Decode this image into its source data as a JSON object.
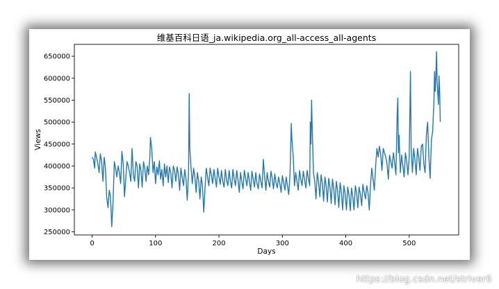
{
  "chart_data": {
    "type": "line",
    "title": "维基百科日语_ja.wikipedia.org_all-access_all-agents",
    "xlabel": "Days",
    "ylabel": "Views",
    "xlim": [
      -28,
      578
    ],
    "ylim": [
      243000,
      677000
    ],
    "xticks": [
      0,
      100,
      200,
      300,
      400,
      500
    ],
    "yticks": [
      250000,
      300000,
      350000,
      400000,
      450000,
      500000,
      550000,
      600000,
      650000
    ],
    "ytick_labels": [
      "250000",
      "300000",
      "350000",
      "400000",
      "450000",
      "500000",
      "550000",
      "600000",
      "650000"
    ],
    "grid": false,
    "color": "#1f77b4",
    "x": [
      0,
      10,
      30,
      50,
      100,
      150,
      200,
      250,
      300,
      350,
      400,
      450,
      500,
      550
    ],
    "series": [
      {
        "keypoints": [
          [
            0,
            420000
          ],
          [
            2,
            415000
          ],
          [
            4,
            395000
          ],
          [
            5,
            432000
          ],
          [
            7,
            420000
          ],
          [
            9,
            405000
          ],
          [
            11,
            385000
          ],
          [
            13,
            428000
          ],
          [
            15,
            410000
          ],
          [
            17,
            365000
          ],
          [
            19,
            420000
          ],
          [
            21,
            395000
          ],
          [
            23,
            330000
          ],
          [
            25,
            305000
          ],
          [
            27,
            345000
          ],
          [
            29,
            330000
          ],
          [
            31,
            262000
          ],
          [
            33,
            320000
          ],
          [
            35,
            410000
          ],
          [
            37,
            395000
          ],
          [
            39,
            375000
          ],
          [
            41,
            400000
          ],
          [
            43,
            385000
          ],
          [
            45,
            360000
          ],
          [
            47,
            433000
          ],
          [
            49,
            405000
          ],
          [
            51,
            330000
          ],
          [
            53,
            370000
          ],
          [
            55,
            410000
          ],
          [
            57,
            400000
          ],
          [
            59,
            385000
          ],
          [
            61,
            365000
          ],
          [
            63,
            440000
          ],
          [
            65,
            380000
          ],
          [
            67,
            365000
          ],
          [
            69,
            410000
          ],
          [
            71,
            400000
          ],
          [
            73,
            350000
          ],
          [
            75,
            405000
          ],
          [
            77,
            390000
          ],
          [
            79,
            352000
          ],
          [
            81,
            410000
          ],
          [
            83,
            395000
          ],
          [
            85,
            365000
          ],
          [
            87,
            400000
          ],
          [
            89,
            380000
          ],
          [
            91,
            420000
          ],
          [
            92,
            465000
          ],
          [
            94,
            440000
          ],
          [
            96,
            385000
          ],
          [
            98,
            410000
          ],
          [
            100,
            360000
          ],
          [
            102,
            398000
          ],
          [
            104,
            380000
          ],
          [
            106,
            412000
          ],
          [
            108,
            370000
          ],
          [
            110,
            392000
          ],
          [
            112,
            355000
          ],
          [
            114,
            405000
          ],
          [
            116,
            375000
          ],
          [
            118,
            400000
          ],
          [
            120,
            362000
          ],
          [
            122,
            398000
          ],
          [
            124,
            385000
          ],
          [
            126,
            350000
          ],
          [
            128,
            400000
          ],
          [
            130,
            390000
          ],
          [
            132,
            365000
          ],
          [
            134,
            398000
          ],
          [
            136,
            380000
          ],
          [
            138,
            345000
          ],
          [
            140,
            395000
          ],
          [
            142,
            375000
          ],
          [
            144,
            355000
          ],
          [
            146,
            392000
          ],
          [
            148,
            372000
          ],
          [
            150,
            322000
          ],
          [
            152,
            385000
          ],
          [
            153,
            565000
          ],
          [
            154,
            440000
          ],
          [
            156,
            395000
          ],
          [
            158,
            360000
          ],
          [
            160,
            395000
          ],
          [
            162,
            375000
          ],
          [
            164,
            340000
          ],
          [
            166,
            385000
          ],
          [
            168,
            365000
          ],
          [
            170,
            325000
          ],
          [
            172,
            375000
          ],
          [
            174,
            355000
          ],
          [
            176,
            295000
          ],
          [
            178,
            350000
          ],
          [
            180,
            395000
          ],
          [
            182,
            375000
          ],
          [
            184,
            355000
          ],
          [
            186,
            395000
          ],
          [
            188,
            380000
          ],
          [
            190,
            360000
          ],
          [
            192,
            392000
          ],
          [
            194,
            372000
          ],
          [
            196,
            352000
          ],
          [
            198,
            395000
          ],
          [
            200,
            375000
          ],
          [
            202,
            358000
          ],
          [
            204,
            390000
          ],
          [
            206,
            365000
          ],
          [
            208,
            352000
          ],
          [
            210,
            392000
          ],
          [
            212,
            368000
          ],
          [
            214,
            355000
          ],
          [
            216,
            390000
          ],
          [
            218,
            365000
          ],
          [
            220,
            350000
          ],
          [
            222,
            392000
          ],
          [
            224,
            370000
          ],
          [
            226,
            355000
          ],
          [
            228,
            390000
          ],
          [
            230,
            368000
          ],
          [
            232,
            340000
          ],
          [
            234,
            385000
          ],
          [
            236,
            365000
          ],
          [
            238,
            348000
          ],
          [
            240,
            390000
          ],
          [
            242,
            372000
          ],
          [
            244,
            355000
          ],
          [
            246,
            385000
          ],
          [
            248,
            365000
          ],
          [
            250,
            345000
          ],
          [
            252,
            388000
          ],
          [
            254,
            370000
          ],
          [
            256,
            352000
          ],
          [
            258,
            385000
          ],
          [
            260,
            360000
          ],
          [
            262,
            348000
          ],
          [
            264,
            382000
          ],
          [
            266,
            365000
          ],
          [
            268,
            350000
          ],
          [
            270,
            415000
          ],
          [
            272,
            375000
          ],
          [
            274,
            345000
          ],
          [
            276,
            385000
          ],
          [
            278,
            365000
          ],
          [
            280,
            352000
          ],
          [
            282,
            388000
          ],
          [
            284,
            372000
          ],
          [
            286,
            348000
          ],
          [
            288,
            382000
          ],
          [
            290,
            362000
          ],
          [
            292,
            350000
          ],
          [
            294,
            375000
          ],
          [
            296,
            360000
          ],
          [
            298,
            340000
          ],
          [
            300,
            378000
          ],
          [
            302,
            362000
          ],
          [
            304,
            345000
          ],
          [
            306,
            375000
          ],
          [
            308,
            355000
          ],
          [
            310,
            335000
          ],
          [
            312,
            380000
          ],
          [
            314,
            497000
          ],
          [
            315,
            460000
          ],
          [
            317,
            425000
          ],
          [
            319,
            355000
          ],
          [
            321,
            385000
          ],
          [
            323,
            365000
          ],
          [
            325,
            345000
          ],
          [
            327,
            390000
          ],
          [
            329,
            370000
          ],
          [
            331,
            355000
          ],
          [
            333,
            388000
          ],
          [
            335,
            368000
          ],
          [
            337,
            350000
          ],
          [
            339,
            390000
          ],
          [
            341,
            372000
          ],
          [
            343,
            355000
          ],
          [
            344,
            500000
          ],
          [
            345,
            450000
          ],
          [
            346,
            550000
          ],
          [
            347,
            490000
          ],
          [
            349,
            385000
          ],
          [
            351,
            365000
          ],
          [
            353,
            325000
          ],
          [
            355,
            385000
          ],
          [
            357,
            365000
          ],
          [
            359,
            330000
          ],
          [
            361,
            380000
          ],
          [
            363,
            360000
          ],
          [
            365,
            320000
          ],
          [
            367,
            375000
          ],
          [
            369,
            355000
          ],
          [
            371,
            318000
          ],
          [
            373,
            372000
          ],
          [
            375,
            352000
          ],
          [
            377,
            315000
          ],
          [
            379,
            370000
          ],
          [
            381,
            348000
          ],
          [
            383,
            312000
          ],
          [
            385,
            365000
          ],
          [
            387,
            345000
          ],
          [
            389,
            305000
          ],
          [
            391,
            362000
          ],
          [
            393,
            340000
          ],
          [
            395,
            300000
          ],
          [
            397,
            355000
          ],
          [
            399,
            335000
          ],
          [
            401,
            300000
          ],
          [
            403,
            352000
          ],
          [
            405,
            335000
          ],
          [
            407,
            298000
          ],
          [
            409,
            350000
          ],
          [
            411,
            330000
          ],
          [
            413,
            300000
          ],
          [
            415,
            355000
          ],
          [
            417,
            338000
          ],
          [
            419,
            305000
          ],
          [
            421,
            352000
          ],
          [
            423,
            335000
          ],
          [
            425,
            310000
          ],
          [
            427,
            358000
          ],
          [
            429,
            340000
          ],
          [
            431,
            325000
          ],
          [
            433,
            355000
          ],
          [
            435,
            340000
          ],
          [
            437,
            300000
          ],
          [
            439,
            360000
          ],
          [
            441,
            395000
          ],
          [
            443,
            370000
          ],
          [
            445,
            345000
          ],
          [
            447,
            400000
          ],
          [
            449,
            440000
          ],
          [
            451,
            420000
          ],
          [
            453,
            445000
          ],
          [
            455,
            425000
          ],
          [
            457,
            390000
          ],
          [
            459,
            440000
          ],
          [
            461,
            430000
          ],
          [
            463,
            420000
          ],
          [
            465,
            405000
          ],
          [
            467,
            370000
          ],
          [
            469,
            425000
          ],
          [
            471,
            410000
          ],
          [
            473,
            395000
          ],
          [
            475,
            430000
          ],
          [
            477,
            408000
          ],
          [
            479,
            380000
          ],
          [
            481,
            520000
          ],
          [
            482,
            555000
          ],
          [
            483,
            430000
          ],
          [
            484,
            470000
          ],
          [
            486,
            385000
          ],
          [
            488,
            425000
          ],
          [
            490,
            400000
          ],
          [
            492,
            375000
          ],
          [
            494,
            430000
          ],
          [
            496,
            410000
          ],
          [
            498,
            380000
          ],
          [
            500,
            420000
          ],
          [
            502,
            615000
          ],
          [
            503,
            440000
          ],
          [
            505,
            385000
          ],
          [
            507,
            440000
          ],
          [
            509,
            415000
          ],
          [
            511,
            380000
          ],
          [
            513,
            440000
          ],
          [
            515,
            420000
          ],
          [
            517,
            390000
          ],
          [
            519,
            445000
          ],
          [
            521,
            450000
          ],
          [
            523,
            405000
          ],
          [
            525,
            385000
          ],
          [
            527,
            470000
          ],
          [
            529,
            500000
          ],
          [
            531,
            420000
          ],
          [
            533,
            372000
          ],
          [
            535,
            460000
          ],
          [
            537,
            480000
          ],
          [
            539,
            550000
          ],
          [
            540,
            615000
          ],
          [
            541,
            570000
          ],
          [
            542,
            600000
          ],
          [
            543,
            660000
          ],
          [
            544,
            590000
          ],
          [
            546,
            540000
          ],
          [
            547,
            605000
          ],
          [
            548,
            570000
          ],
          [
            549,
            500000
          ]
        ]
      }
    ]
  },
  "watermark": "https://blog.csdn.net/striver6"
}
